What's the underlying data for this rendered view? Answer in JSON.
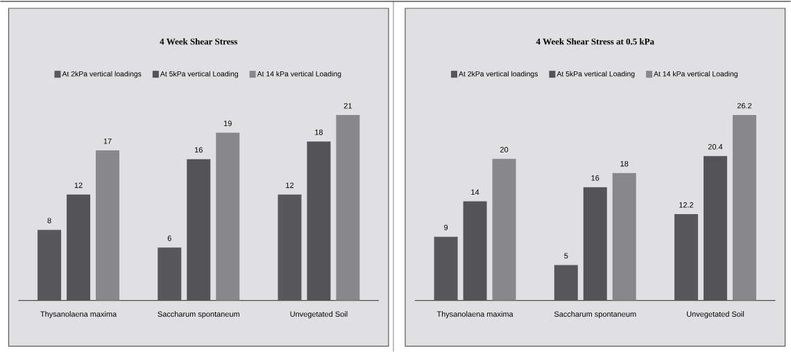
{
  "chart_data": [
    {
      "type": "bar",
      "title": "4 Week Shear Stress",
      "categories": [
        "Thysanolaena maxima",
        "Saccharum spontaneum",
        "Unvegetated Soil"
      ],
      "series": [
        {
          "name": "At 2kPa vertical loadings",
          "color": "#58585a",
          "values": [
            8,
            6,
            12
          ]
        },
        {
          "name": "At 5kPa vertical Loading",
          "color": "#545456",
          "values": [
            12,
            16,
            18
          ]
        },
        {
          "name": "At 14 kPa vertical Loading",
          "color": "#88888a",
          "values": [
            17,
            19,
            21
          ]
        }
      ],
      "data_labels": true,
      "legend": "top"
    },
    {
      "type": "bar",
      "title": "4 Week Shear Stress at 0.5 kPa",
      "categories": [
        "Thysanolaena maxima",
        "Saccharum spontaneum",
        "Unvegetated Soil"
      ],
      "series": [
        {
          "name": "At 2kPa vertical loadings",
          "color": "#58585a",
          "values": [
            9,
            5,
            12.2
          ]
        },
        {
          "name": "At 5kPa vertical Loading",
          "color": "#545456",
          "values": [
            14,
            16,
            20.4
          ]
        },
        {
          "name": "At 14 kPa vertical Loading",
          "color": "#88888a",
          "values": [
            20,
            18,
            26.2
          ]
        }
      ],
      "data_labels": true,
      "legend": "top"
    }
  ]
}
